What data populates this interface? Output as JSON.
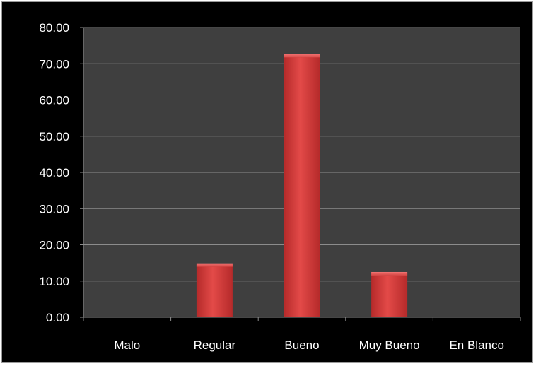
{
  "chart_data": {
    "type": "bar",
    "categories": [
      "Malo",
      "Regular",
      "Bueno",
      "Muy Bueno",
      "En Blanco"
    ],
    "values": [
      0,
      14.5,
      72.3,
      12.1,
      0
    ],
    "ylim": [
      0,
      80
    ],
    "yticks": [
      "0.00",
      "10.00",
      "20.00",
      "30.00",
      "40.00",
      "50.00",
      "60.00",
      "70.00",
      "80.00"
    ],
    "grid": true,
    "colors": {
      "figure_background": "#000000",
      "plot_background": "#3f3f3f",
      "gridline": "#8c8c8c",
      "bar": "#d8403f",
      "text": "#ffffff"
    }
  }
}
